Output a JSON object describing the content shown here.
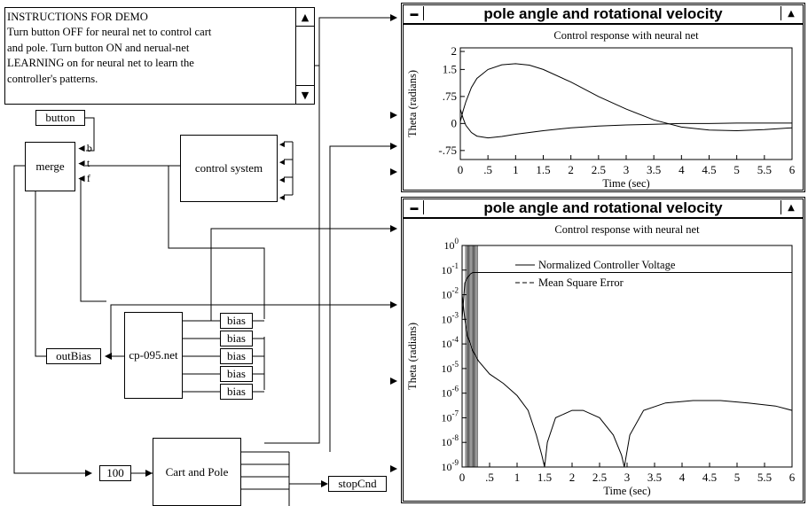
{
  "instructions": {
    "lines": [
      "INSTRUCTIONS FOR DEMO",
      "Turn button OFF for neural net to control cart",
      "and pole. Turn button ON and nerual-net",
      "LEARNING on for neural net to learn the",
      "controller's patterns."
    ],
    "scroll_up": "▲",
    "scroll_down": "▼"
  },
  "blocks": {
    "button": "button",
    "merge": "merge",
    "merge_ports": [
      "b",
      "t",
      "f"
    ],
    "control_system": "control system",
    "out_bias": "outBias",
    "net": "cp-095.net",
    "bias": [
      "bias",
      "bias",
      "bias",
      "bias",
      "bias"
    ],
    "hundred": "100",
    "cart_pole": "Cart and Pole",
    "stop_cnd": "stopCnd"
  },
  "windows": {
    "top": {
      "title": "pole angle and rotational velocity",
      "close": "▬",
      "zoom": "▲"
    },
    "bottom": {
      "title": "pole angle and rotational velocity",
      "close": "▬",
      "zoom": "▲"
    }
  },
  "chart_data": [
    {
      "type": "line",
      "title": "Control response with neural net",
      "xlabel": "Time (sec)",
      "ylabel": "Theta (radians)",
      "xlim": [
        0,
        6
      ],
      "ylim": [
        -1,
        2.1
      ],
      "x_ticks": [
        0,
        0.5,
        1,
        1.5,
        2,
        2.5,
        3,
        3.5,
        4,
        4.5,
        5,
        5.5,
        6
      ],
      "x_tick_labels": [
        "0",
        ".5",
        "1",
        "1.5",
        "2",
        "2.5",
        "3",
        "3.5",
        "4",
        "4.5",
        "5",
        "5.5",
        "6"
      ],
      "y_ticks": [
        2,
        1.5,
        0.75,
        0,
        -0.75
      ],
      "y_tick_labels": [
        "2",
        "1.5",
        ".75",
        "0",
        "-.75"
      ],
      "series": [
        {
          "x": [
            0,
            0.05,
            0.1,
            0.2,
            0.3,
            0.5,
            0.75,
            1,
            1.25,
            1.5,
            2,
            2.5,
            3,
            3.5,
            4,
            4.5,
            5,
            5.5,
            6
          ],
          "y": [
            0.05,
            0.35,
            0.6,
            1.0,
            1.25,
            1.5,
            1.63,
            1.66,
            1.62,
            1.5,
            1.15,
            0.75,
            0.4,
            0.1,
            -0.1,
            -0.18,
            -0.2,
            -0.17,
            -0.12
          ]
        },
        {
          "x": [
            0,
            0.05,
            0.1,
            0.2,
            0.3,
            0.5,
            0.75,
            1,
            1.5,
            2,
            2.5,
            3,
            3.5,
            4,
            4.5,
            5,
            5.5,
            6
          ],
          "y": [
            0.4,
            0.15,
            -0.05,
            -0.25,
            -0.35,
            -0.4,
            -0.36,
            -0.3,
            -0.2,
            -0.12,
            -0.07,
            -0.04,
            -0.02,
            0,
            0,
            0.01,
            0.01,
            0.01
          ]
        }
      ]
    },
    {
      "type": "line",
      "title": "Control response with neural net",
      "xlabel": "Time (sec)",
      "ylabel": "Theta (radians)",
      "y_scale": "log",
      "xlim": [
        0,
        6
      ],
      "ylim": [
        1e-09,
        1
      ],
      "x_ticks": [
        0,
        0.5,
        1,
        1.5,
        2,
        2.5,
        3,
        3.5,
        4,
        4.5,
        5,
        5.5,
        6
      ],
      "x_tick_labels": [
        "0",
        ".5",
        "1",
        "1.5",
        "2",
        "2.5",
        "3",
        "3.5",
        "4",
        "4.5",
        "5",
        "5.5",
        "6"
      ],
      "y_ticks": [
        1,
        0.1,
        0.01,
        0.001,
        0.0001,
        1e-05,
        1e-06,
        1e-07,
        1e-08,
        1e-09
      ],
      "y_tick_mantissa": "10",
      "y_tick_exponents": [
        "0",
        "-1",
        "-2",
        "-3",
        "-4",
        "-5",
        "-6",
        "-7",
        "-8",
        "-9"
      ],
      "legend": [
        "Normalized Controller Voltage",
        "Mean Square Error"
      ],
      "legend_position": "top-center",
      "series": [
        {
          "name": "Normalized Controller Voltage",
          "x": [
            0,
            0.05,
            0.1,
            0.15,
            0.2,
            0.3,
            0.5,
            1,
            2,
            3,
            4,
            5,
            6
          ],
          "y": [
            0.001,
            0.03,
            0.05,
            0.07,
            0.08,
            0.08,
            0.08,
            0.08,
            0.08,
            0.08,
            0.08,
            0.08,
            0.08
          ]
        },
        {
          "name": "Mean Square Error",
          "x": [
            0,
            0.05,
            0.1,
            0.2,
            0.3,
            0.5,
            0.75,
            1,
            1.2,
            1.35,
            1.45,
            1.5,
            1.55,
            1.7,
            2.0,
            2.2,
            2.5,
            2.75,
            2.9,
            2.95,
            3.05,
            3.3,
            3.7,
            4.2,
            4.7,
            5.2,
            5.7,
            6
          ],
          "y": [
            0.01,
            0.001,
            0.0002,
            5e-05,
            2e-05,
            6e-06,
            2.5e-06,
            8e-07,
            2e-07,
            2e-08,
            3e-09,
            1e-09,
            1e-08,
            1e-07,
            2e-07,
            2e-07,
            1e-07,
            2e-08,
            3e-09,
            1e-09,
            2e-08,
            2e-07,
            4e-07,
            5e-07,
            5e-07,
            4e-07,
            3e-07,
            2e-07
          ]
        }
      ]
    }
  ]
}
